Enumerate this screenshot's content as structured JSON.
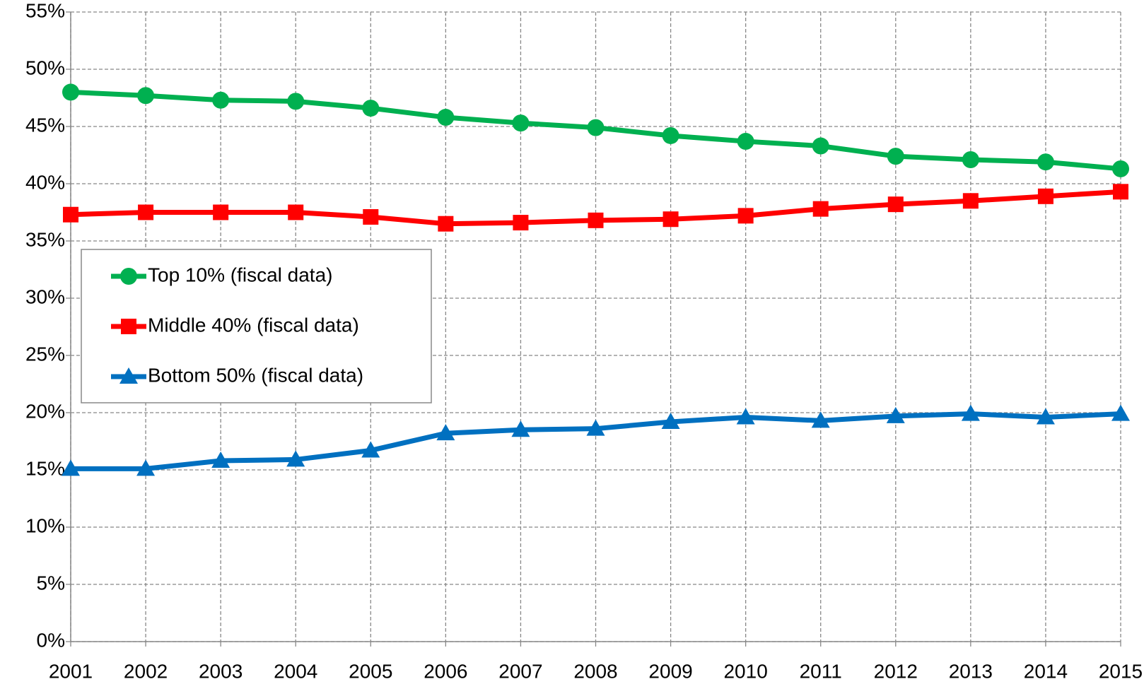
{
  "chart_data": {
    "type": "line",
    "x": [
      2001,
      2002,
      2003,
      2004,
      2005,
      2006,
      2007,
      2008,
      2009,
      2010,
      2011,
      2012,
      2013,
      2014,
      2015
    ],
    "xlim": [
      2001,
      2015
    ],
    "xticks": [
      2001,
      2002,
      2003,
      2004,
      2005,
      2006,
      2007,
      2008,
      2009,
      2010,
      2011,
      2012,
      2013,
      2014,
      2015
    ],
    "ylim": [
      0,
      55
    ],
    "yticks": [
      {
        "value": 0,
        "label": "0%"
      },
      {
        "value": 5,
        "label": "5%"
      },
      {
        "value": 10,
        "label": "10%"
      },
      {
        "value": 15,
        "label": "15%"
      },
      {
        "value": 20,
        "label": "20%"
      },
      {
        "value": 25,
        "label": "25%"
      },
      {
        "value": 30,
        "label": "30%"
      },
      {
        "value": 35,
        "label": "35%"
      },
      {
        "value": 40,
        "label": "40%"
      },
      {
        "value": 45,
        "label": "45%"
      },
      {
        "value": 50,
        "label": "50%"
      },
      {
        "value": 55,
        "label": "55%"
      }
    ],
    "grid": true,
    "legend": "left",
    "series": [
      {
        "name": "Top 10% (fiscal data)",
        "color": "#00b050",
        "marker": "circle",
        "values": [
          48.0,
          47.7,
          47.3,
          47.2,
          46.6,
          45.8,
          45.3,
          44.9,
          44.2,
          43.7,
          43.3,
          42.4,
          42.1,
          41.9,
          41.3
        ]
      },
      {
        "name": "Middle 40% (fiscal data)",
        "color": "#ff0000",
        "marker": "square",
        "values": [
          37.3,
          37.5,
          37.5,
          37.5,
          37.1,
          36.5,
          36.6,
          36.8,
          36.9,
          37.2,
          37.8,
          38.2,
          38.5,
          38.9,
          39.3
        ]
      },
      {
        "name": "Bottom 50% (fiscal data)",
        "color": "#0070c0",
        "marker": "triangle",
        "values": [
          15.1,
          15.1,
          15.8,
          15.9,
          16.7,
          18.2,
          18.5,
          18.6,
          19.2,
          19.6,
          19.3,
          19.7,
          19.9,
          19.6,
          19.9
        ]
      }
    ]
  }
}
